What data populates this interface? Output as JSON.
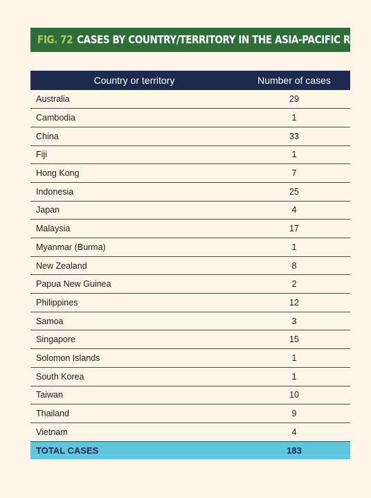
{
  "figure": {
    "number": "FIG. 72",
    "title": "CASES BY COUNTRY/TERRITORY IN THE ASIA-PACIFIC REGION"
  },
  "colors": {
    "page_background": "#fdf6e8",
    "banner_background": "#2e6d3a",
    "figure_number": "#a5cf62",
    "header_background": "#1d2a4d",
    "total_background": "#5ec6df"
  },
  "table": {
    "headers": [
      "Country or territory",
      "Number of cases"
    ],
    "rows": [
      {
        "country": "Australia",
        "cases": "29"
      },
      {
        "country": "Cambodia",
        "cases": "1"
      },
      {
        "country": "China",
        "cases": "33"
      },
      {
        "country": "Fiji",
        "cases": "1"
      },
      {
        "country": "Hong Kong",
        "cases": "7"
      },
      {
        "country": "Indonesia",
        "cases": "25"
      },
      {
        "country": "Japan",
        "cases": "4"
      },
      {
        "country": "Malaysia",
        "cases": "17"
      },
      {
        "country": "Myanmar (Burma)",
        "cases": "1"
      },
      {
        "country": "New Zealand",
        "cases": "8"
      },
      {
        "country": "Papua New Guinea",
        "cases": "2"
      },
      {
        "country": "Philippines",
        "cases": "12"
      },
      {
        "country": "Samoa",
        "cases": "3"
      },
      {
        "country": "Singapore",
        "cases": "15"
      },
      {
        "country": "Solomon Islands",
        "cases": "1"
      },
      {
        "country": "South Korea",
        "cases": "1"
      },
      {
        "country": "Taiwan",
        "cases": "10"
      },
      {
        "country": "Thailand",
        "cases": "9"
      },
      {
        "country": "Vietnam",
        "cases": "4"
      }
    ],
    "total": {
      "label": "TOTAL CASES",
      "cases": "183"
    }
  }
}
